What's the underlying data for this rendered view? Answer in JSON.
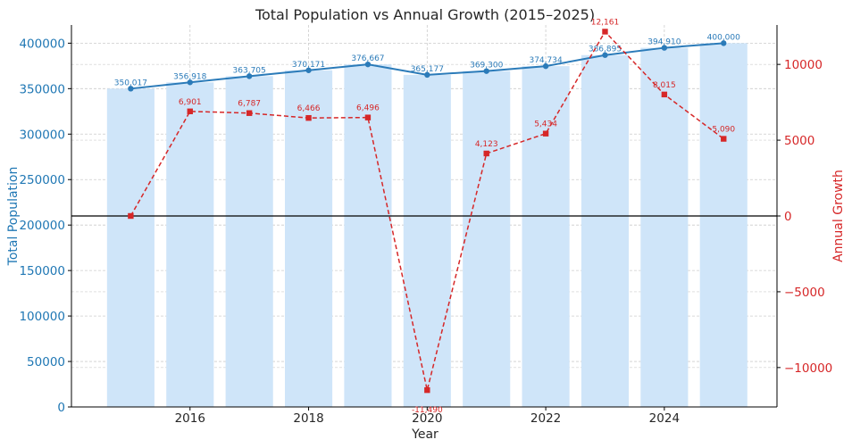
{
  "chart_data": {
    "type": "bar+line",
    "title": "Total Population vs Annual Growth (2015–2025)",
    "xlabel": "Year",
    "ylabel_left": "Total Population",
    "ylabel_right": "Annual Growth",
    "x_ticks": [
      "2016",
      "2018",
      "2020",
      "2022",
      "2024"
    ],
    "left_ticks": [
      {
        "v": 0,
        "label": "0"
      },
      {
        "v": 50000,
        "label": "50000"
      },
      {
        "v": 100000,
        "label": "100000"
      },
      {
        "v": 150000,
        "label": "150000"
      },
      {
        "v": 200000,
        "label": "200000"
      },
      {
        "v": 250000,
        "label": "250000"
      },
      {
        "v": 300000,
        "label": "300000"
      },
      {
        "v": 350000,
        "label": "350000"
      },
      {
        "v": 400000,
        "label": "400000"
      }
    ],
    "right_ticks": [
      {
        "v": -10000,
        "label": "−10000"
      },
      {
        "v": -5000,
        "label": "−5000"
      },
      {
        "v": 0,
        "label": "0"
      },
      {
        "v": 5000,
        "label": "5000"
      },
      {
        "v": 10000,
        "label": "10000"
      }
    ],
    "x_range": [
      2014.0,
      2025.9
    ],
    "left_ylim": [
      0,
      420000
    ],
    "right_ylim": [
      -12600,
      12600
    ],
    "grid": true,
    "years": [
      2015,
      2016,
      2017,
      2018,
      2019,
      2020,
      2021,
      2022,
      2023,
      2024,
      2025
    ],
    "population": {
      "values": [
        350017,
        356918,
        363705,
        370171,
        376667,
        365177,
        369300,
        374734,
        386895,
        394910,
        400000
      ],
      "labels": [
        "350,017",
        "356,918",
        "363,705",
        "370,171",
        "376,667",
        "365,177",
        "369,300",
        "374,734",
        "386,895",
        "394,910",
        "400,000"
      ]
    },
    "growth": {
      "values": [
        0,
        6901,
        6787,
        6466,
        6496,
        -11490,
        4123,
        5434,
        12161,
        8015,
        5090
      ],
      "labels": [
        "",
        "6,901",
        "6,787",
        "6,466",
        "6,496",
        "-11,490",
        "4,123",
        "5,434",
        "12,161",
        "8,015",
        "5,090"
      ]
    },
    "colors": {
      "bar": "#cfe5f9",
      "population_line": "#2b7bb9",
      "growth_line": "#d62728",
      "left_axis_text": "#1f77b4",
      "right_axis_text": "#d62728",
      "grid": "#cccccc",
      "zero_line": "#000000"
    }
  }
}
